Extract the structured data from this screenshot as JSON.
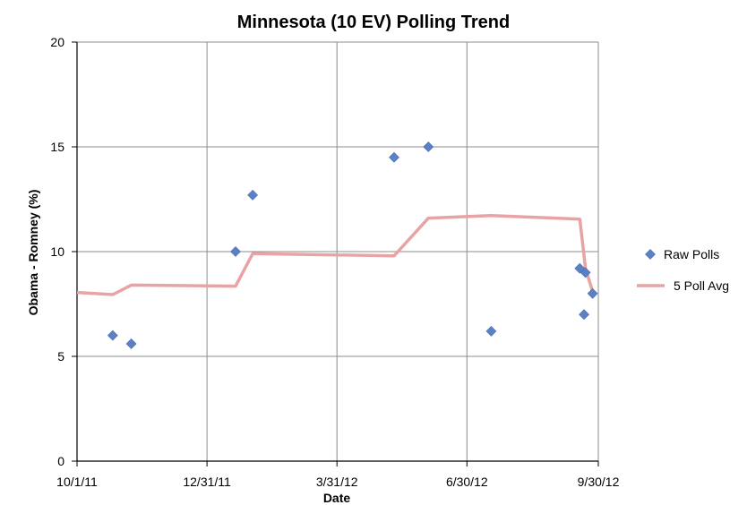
{
  "chart_data": {
    "type": "scatter",
    "title": "Minnesota (10 EV) Polling Trend",
    "xlabel": "Date",
    "ylabel": "Obama - Romney (%)",
    "ylim": [
      0,
      20
    ],
    "yticks": [
      0,
      5,
      10,
      15,
      20
    ],
    "xlim": [
      "2011-10-01",
      "2012-09-30"
    ],
    "xticks": [
      {
        "date": "2011-10-01",
        "label": "10/1/11"
      },
      {
        "date": "2011-12-31",
        "label": "12/31/11"
      },
      {
        "date": "2012-03-31",
        "label": "3/31/12"
      },
      {
        "date": "2012-06-30",
        "label": "6/30/12"
      },
      {
        "date": "2012-09-30",
        "label": "9/30/12"
      }
    ],
    "grid": true,
    "legend_position": "right",
    "series": [
      {
        "name": "Raw Polls",
        "type": "scatter",
        "color": "#5b80c4",
        "points": [
          {
            "x": "2011-10-26",
            "y": 6.0
          },
          {
            "x": "2011-11-08",
            "y": 5.6
          },
          {
            "x": "2012-01-20",
            "y": 10.0
          },
          {
            "x": "2012-02-01",
            "y": 12.7
          },
          {
            "x": "2012-05-10",
            "y": 14.5
          },
          {
            "x": "2012-06-03",
            "y": 15.0
          },
          {
            "x": "2012-07-17",
            "y": 6.2
          },
          {
            "x": "2012-09-17",
            "y": 9.2
          },
          {
            "x": "2012-09-20",
            "y": 7.0
          },
          {
            "x": "2012-09-21",
            "y": 9.0
          },
          {
            "x": "2012-09-26",
            "y": 8.0
          }
        ]
      },
      {
        "name": "5 Poll Avg",
        "type": "line",
        "color": "#e8a4a4",
        "points": [
          {
            "x": "2011-10-01",
            "y": 8.05
          },
          {
            "x": "2011-10-26",
            "y": 7.95
          },
          {
            "x": "2011-11-08",
            "y": 8.4
          },
          {
            "x": "2012-01-20",
            "y": 8.35
          },
          {
            "x": "2012-02-01",
            "y": 9.9
          },
          {
            "x": "2012-05-10",
            "y": 9.8
          },
          {
            "x": "2012-06-03",
            "y": 11.6
          },
          {
            "x": "2012-07-17",
            "y": 11.72
          },
          {
            "x": "2012-09-17",
            "y": 11.55
          },
          {
            "x": "2012-09-20",
            "y": 9.8
          },
          {
            "x": "2012-09-21",
            "y": 9.2
          },
          {
            "x": "2012-09-26",
            "y": 8.1
          }
        ]
      }
    ]
  }
}
